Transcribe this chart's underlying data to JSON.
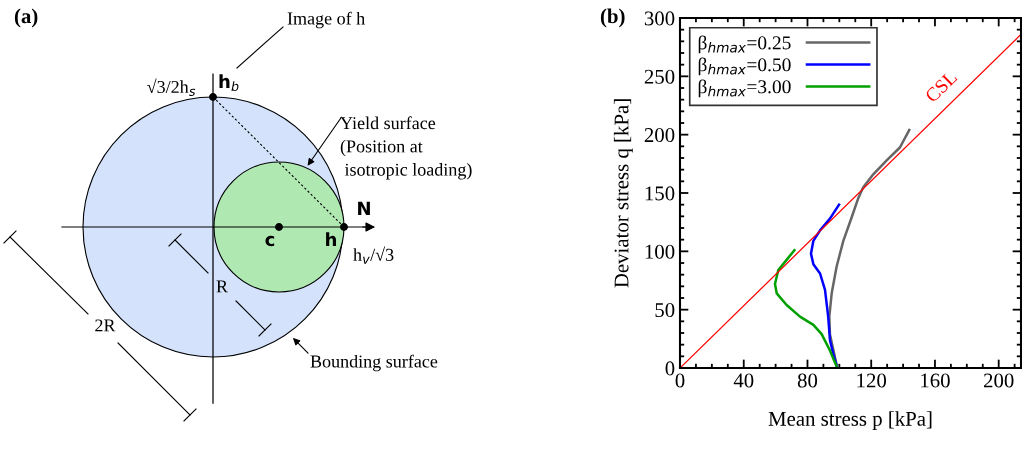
{
  "chart_data": [
    {
      "type": "other",
      "title": "(a)",
      "annotations": [
        "Image of h",
        "h$_{b}$",
        "√3/2h$_{s}$",
        "Yield surface\n(Position at\n isotropic loading)",
        "N",
        "c",
        "h",
        "h$_{v}$/√3",
        "R",
        "2R",
        "Bounding surface"
      ]
    },
    {
      "type": "line",
      "title": "(b)",
      "xlabel": "Mean stress p [kPa]",
      "ylabel": "Deviator stress q [kPa]",
      "xlim": [
        0,
        214
      ],
      "ylim": [
        0,
        300
      ],
      "xticks": [
        0,
        40,
        80,
        120,
        160,
        200
      ],
      "yticks": [
        0,
        50,
        100,
        150,
        200,
        250,
        300
      ],
      "grid": false,
      "annotations": [
        {
          "text": "CSL",
          "x": 172,
          "y": 230
        }
      ],
      "legend": "top left",
      "marker": "none",
      "line_style": "solid",
      "series": [
        {
          "name": "β$_{hmax}$=0.25",
          "color": "#666666",
          "x": [
            98.7,
            94.1,
            93.7,
            95.2,
            98.3,
            102.5,
            107.7,
            112,
            115,
            121.3,
            129.7,
            138,
            143.9
          ],
          "values": [
            0,
            29,
            44,
            64,
            87,
            109,
            129,
            146,
            155,
            166,
            178,
            189,
            204
          ]
        },
        {
          "name": "β$_{hmax}$=0.50",
          "color": "#0000ff",
          "x": [
            98.7,
            96.2,
            94.1,
            93,
            91,
            87.9,
            83.7,
            82.2,
            83.7,
            87.9,
            94.1,
            99.8
          ],
          "values": [
            0,
            12,
            24,
            44,
            67,
            81,
            89,
            98,
            109,
            118,
            128,
            140
          ]
        },
        {
          "name": "β$_{hmax}$=3.00",
          "color": "#00a000",
          "x": [
            98.7,
            94.1,
            88.9,
            83.7,
            75.3,
            66.9,
            60.7,
            59.6,
            61.7,
            65.9,
            71.8
          ],
          "values": [
            0,
            15,
            29,
            37,
            44,
            54,
            64,
            72,
            84,
            91,
            101
          ]
        },
        {
          "color": "#ff0000",
          "x": [
            0,
            214
          ],
          "values": [
            0,
            286
          ]
        }
      ]
    }
  ]
}
